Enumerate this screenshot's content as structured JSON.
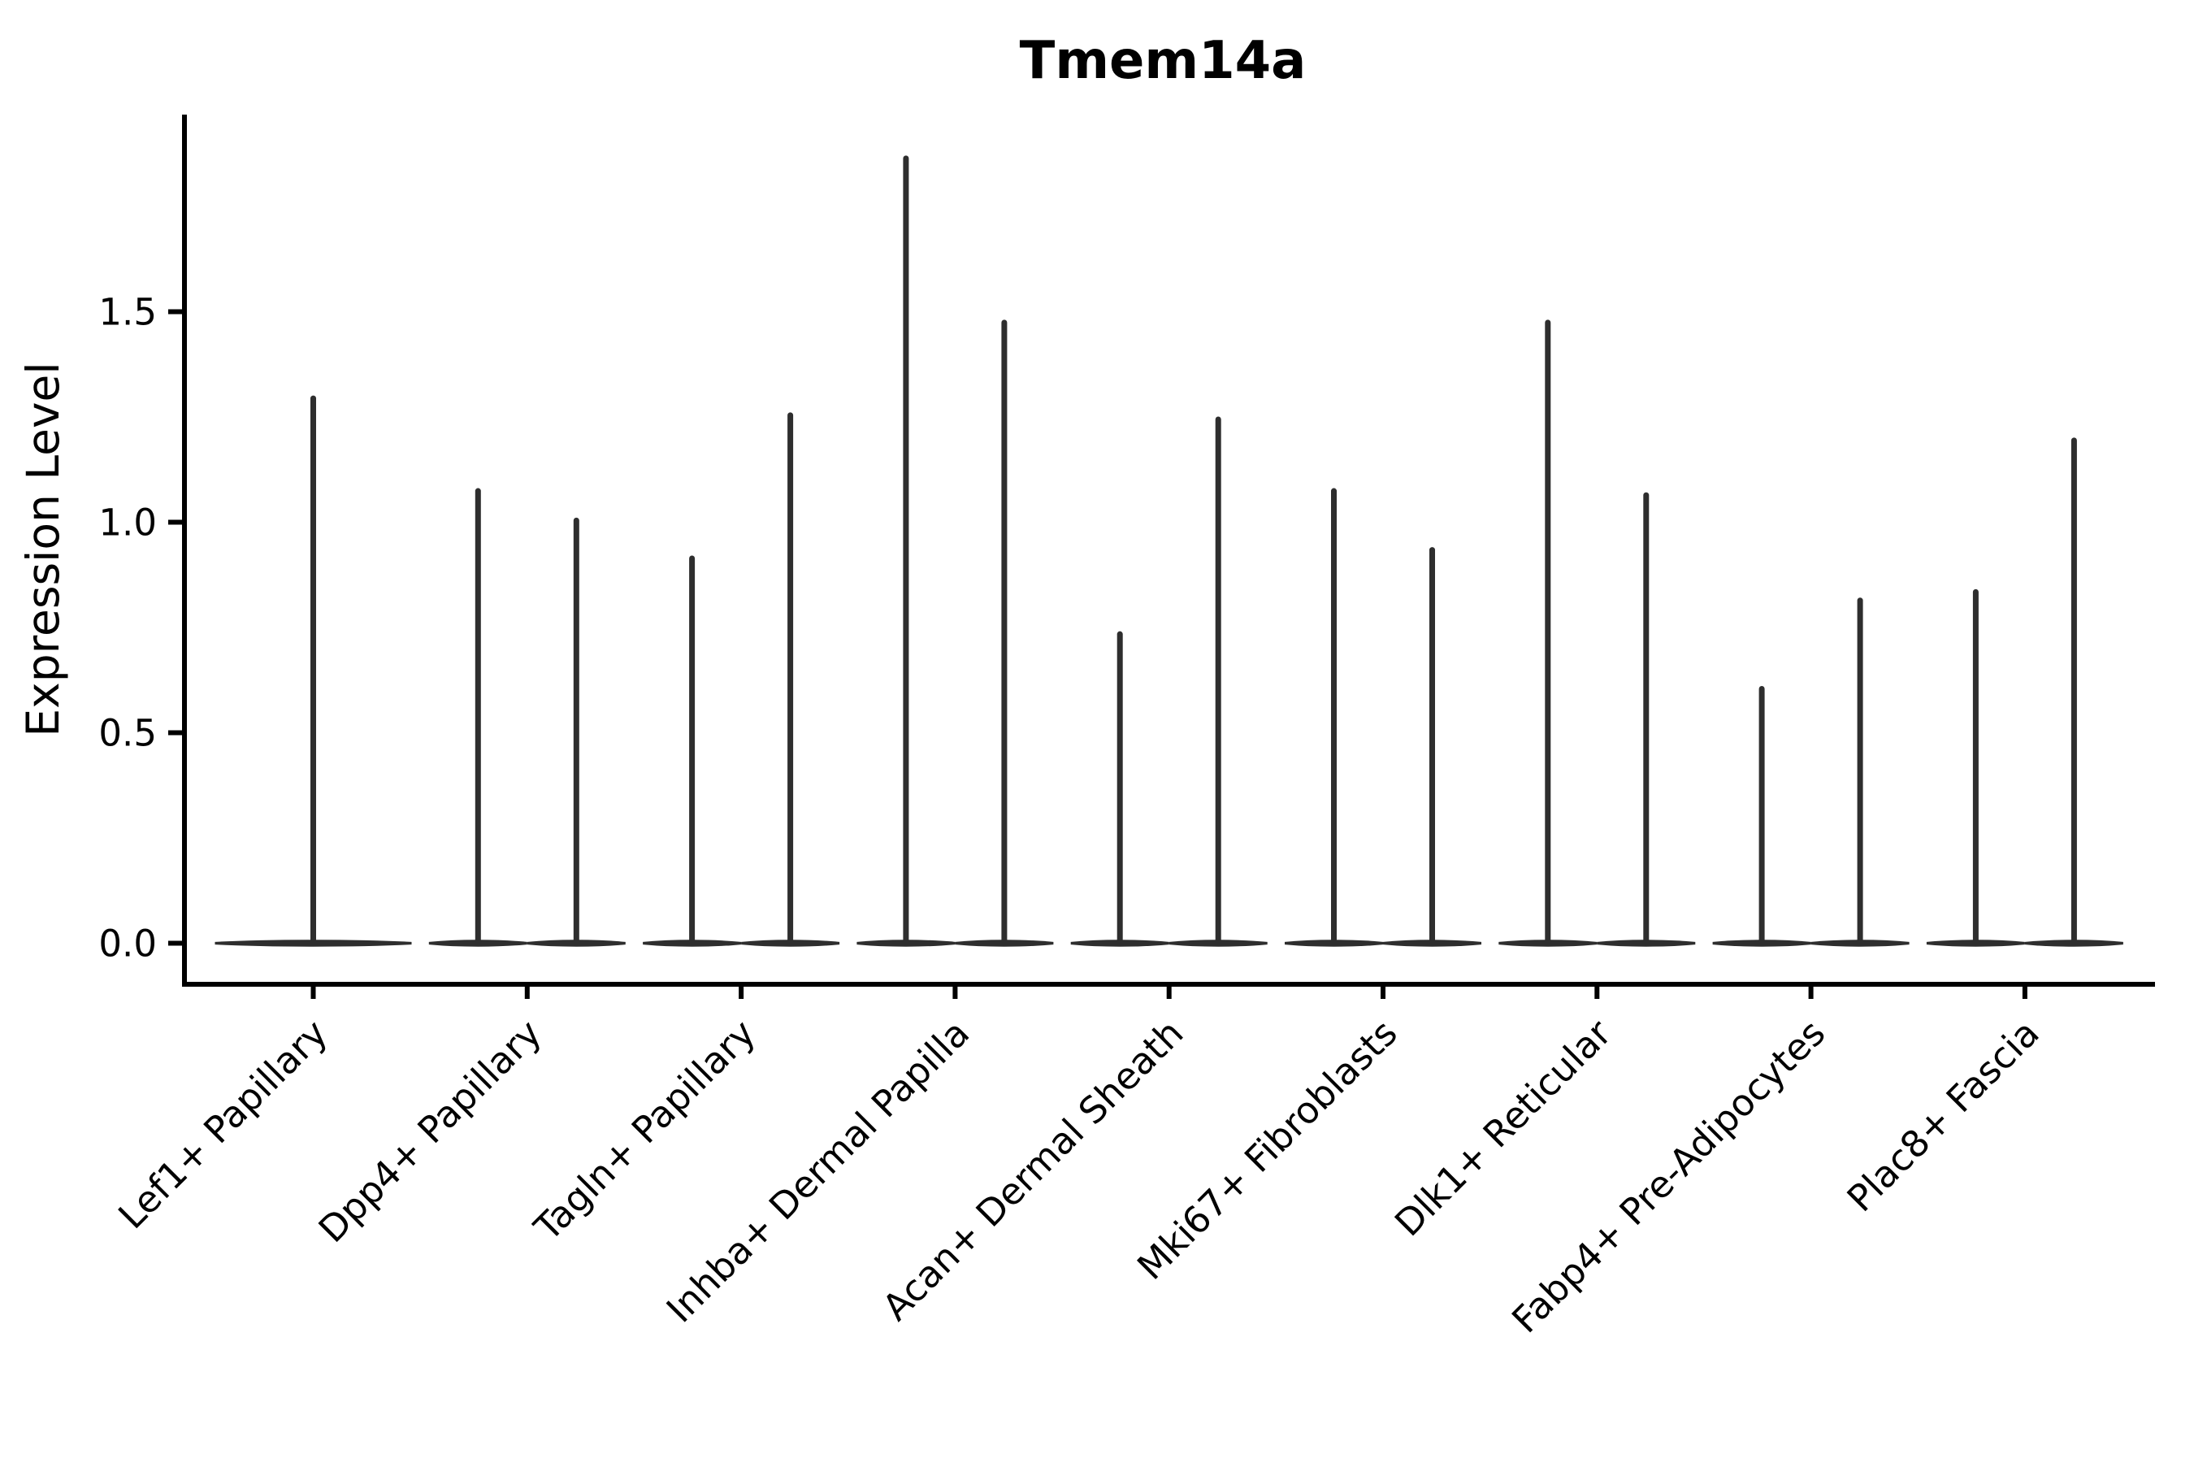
{
  "title": "Tmem14a",
  "ylabel": "Expression Level",
  "yticks": [
    "0.0",
    "0.5",
    "1.0",
    "1.5"
  ],
  "colors": {
    "violin": "#2e2e2e",
    "axis": "#000000",
    "background": "#ffffff"
  },
  "chart_data": {
    "type": "violin",
    "title": "Tmem14a",
    "xlabel": "",
    "ylabel": "Expression Level",
    "ylim": [
      -0.1,
      1.97
    ],
    "ytick_values": [
      0.0,
      0.5,
      1.0,
      1.5
    ],
    "grid": false,
    "legend": null,
    "categories": [
      "Lef1+ Papillary",
      "Dpp4+ Papillary",
      "Tagln+ Papillary",
      "Inhba+ Dermal Papilla",
      "Acan+ Dermal Sheath",
      "Mki67+ Fibroblasts",
      "Dlk1+ Reticular",
      "Fabp4+ Pre-Adipocytes",
      "Plac8+ Fascia"
    ],
    "series": [
      {
        "category": "Lef1+ Papillary",
        "violins": [
          {
            "position": "center",
            "peak_expression": 1.3,
            "baseline": 0
          }
        ]
      },
      {
        "category": "Dpp4+ Papillary",
        "violins": [
          {
            "position": "left",
            "peak_expression": 1.08,
            "baseline": 0
          },
          {
            "position": "right",
            "peak_expression": 1.01,
            "baseline": 0
          }
        ]
      },
      {
        "category": "Tagln+ Papillary",
        "violins": [
          {
            "position": "left",
            "peak_expression": 0.92,
            "baseline": 0
          },
          {
            "position": "right",
            "peak_expression": 1.26,
            "baseline": 0
          }
        ]
      },
      {
        "category": "Inhba+ Dermal Papilla",
        "violins": [
          {
            "position": "left",
            "peak_expression": 1.87,
            "baseline": 0
          },
          {
            "position": "right",
            "peak_expression": 1.48,
            "baseline": 0
          }
        ]
      },
      {
        "category": "Acan+ Dermal Sheath",
        "violins": [
          {
            "position": "left",
            "peak_expression": 0.74,
            "baseline": 0
          },
          {
            "position": "right",
            "peak_expression": 1.25,
            "baseline": 0
          }
        ]
      },
      {
        "category": "Mki67+ Fibroblasts",
        "violins": [
          {
            "position": "left",
            "peak_expression": 1.08,
            "baseline": 0
          },
          {
            "position": "right",
            "peak_expression": 0.94,
            "baseline": 0
          }
        ]
      },
      {
        "category": "Dlk1+ Reticular",
        "violins": [
          {
            "position": "left",
            "peak_expression": 1.48,
            "baseline": 0
          },
          {
            "position": "right",
            "peak_expression": 1.07,
            "baseline": 0
          }
        ]
      },
      {
        "category": "Fabp4+ Pre-Adipocytes",
        "violins": [
          {
            "position": "left",
            "peak_expression": 0.61,
            "baseline": 0
          },
          {
            "position": "right",
            "peak_expression": 0.82,
            "baseline": 0
          }
        ]
      },
      {
        "category": "Plac8+ Fascia",
        "violins": [
          {
            "position": "left",
            "peak_expression": 0.84,
            "baseline": 0
          },
          {
            "position": "right",
            "peak_expression": 1.2,
            "baseline": 0
          }
        ]
      }
    ],
    "description": "Violin plot of Tmem14a expression per fibroblast cluster; each violin is collapsed to a flat density band at 0 with a thin spike reaching the maximum expression value."
  }
}
